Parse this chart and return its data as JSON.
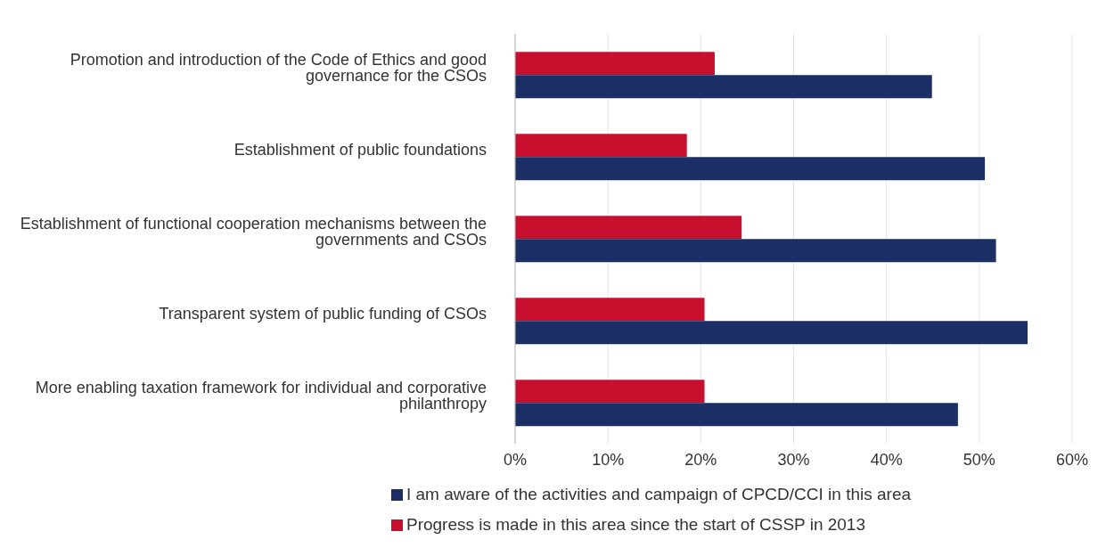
{
  "chart_data": {
    "type": "bar",
    "orientation": "horizontal",
    "categories": [
      "Promotion and introduction of the Code of Ethics and good governance for the CSOs",
      "Establishment of public foundations",
      "Establishment of functional cooperation mechanisms between the governments and CSOs",
      "Transparent system of public funding of CSOs",
      "More enabling taxation framework for individual and corporative philanthropy"
    ],
    "series": [
      {
        "name": "Progress is made in this area since the start of CSSP in 2013",
        "color": "#c8102e",
        "values": [
          0.215,
          0.185,
          0.244,
          0.204,
          0.204
        ]
      },
      {
        "name": "I am aware of the activities and campaign of CPCD/CCI in this area",
        "color": "#1b2f66",
        "values": [
          0.449,
          0.506,
          0.518,
          0.552,
          0.477
        ]
      }
    ],
    "xlim": [
      0,
      0.6
    ],
    "xticks": [
      {
        "value": 0,
        "label": "0%"
      },
      {
        "value": 0.1,
        "label": "10%"
      },
      {
        "value": 0.2,
        "label": "20%"
      },
      {
        "value": 0.3,
        "label": "30%"
      },
      {
        "value": 0.4,
        "label": "40%"
      },
      {
        "value": 0.5,
        "label": "50%"
      },
      {
        "value": 0.6,
        "label": "60%"
      }
    ],
    "grid": "x",
    "legend": "bottom"
  }
}
